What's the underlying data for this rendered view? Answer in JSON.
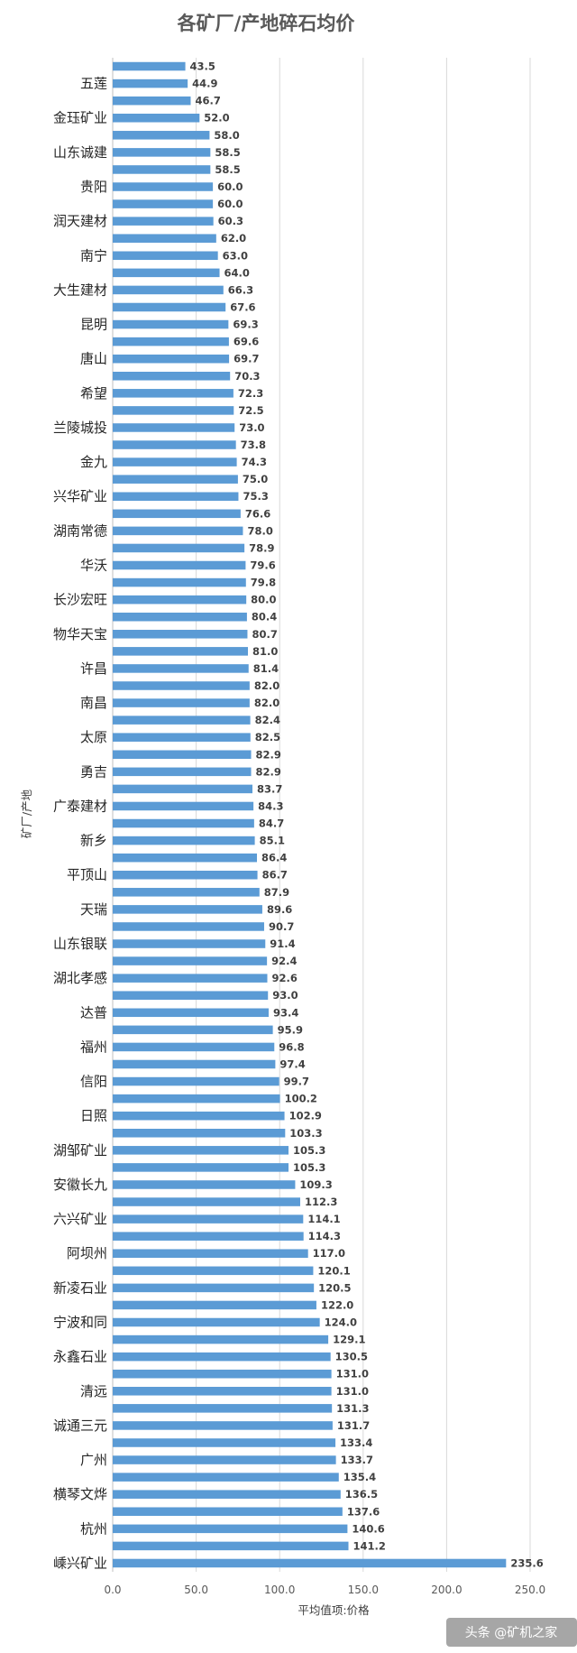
{
  "chart_data": {
    "type": "bar",
    "orientation": "horizontal",
    "title": "各矿厂/产地碎石均价",
    "xlabel": "平均值项:价格",
    "ylabel": "矿厂/产地",
    "xlim": [
      0,
      250
    ],
    "xticks": [
      "0.0",
      "50.0",
      "100.0",
      "150.0",
      "200.0",
      "250.0"
    ],
    "grid": true,
    "bar_color": "#5B9BD5",
    "categories": [
      "",
      "五莲",
      "",
      "金珏矿业",
      "",
      "山东诚建",
      "",
      "贵阳",
      "",
      "润天建材",
      "",
      "南宁",
      "",
      "大生建材",
      "",
      "昆明",
      "",
      "唐山",
      "",
      "希望",
      "",
      "兰陵城投",
      "",
      "金九",
      "",
      "兴华矿业",
      "",
      "湖南常德",
      "",
      "华沃",
      "",
      "长沙宏旺",
      "",
      "物华天宝",
      "",
      "许昌",
      "",
      "南昌",
      "",
      "太原",
      "",
      "勇吉",
      "",
      "广泰建材",
      "",
      "新乡",
      "",
      "平顶山",
      "",
      "天瑞",
      "",
      "山东银联",
      "",
      "湖北孝感",
      "",
      "达普",
      "",
      "福州",
      "",
      "信阳",
      "",
      "日照",
      "",
      "湖邹矿业",
      "",
      "安徽长九",
      "",
      "六兴矿业",
      "",
      "阿坝州",
      "",
      "新凌石业",
      "",
      "宁波和同",
      "",
      "永鑫石业",
      "",
      "清远",
      "",
      "诚通三元",
      "",
      "广州",
      "",
      "横琴文烨",
      "",
      "杭州",
      "",
      "嵊兴矿业"
    ],
    "values": [
      43.5,
      44.9,
      46.7,
      52.0,
      58.0,
      58.5,
      58.5,
      60.0,
      60.0,
      60.3,
      62.0,
      63.0,
      64.0,
      66.3,
      67.6,
      69.3,
      69.6,
      69.7,
      70.3,
      72.3,
      72.5,
      73.0,
      73.8,
      74.3,
      75.0,
      75.3,
      76.6,
      78.0,
      78.9,
      79.6,
      79.8,
      80.0,
      80.4,
      80.7,
      81.0,
      81.4,
      82.0,
      82.0,
      82.4,
      82.5,
      82.9,
      82.9,
      83.7,
      84.3,
      84.7,
      85.1,
      86.4,
      86.7,
      87.9,
      89.6,
      90.7,
      91.4,
      92.4,
      92.6,
      93.0,
      93.4,
      95.9,
      96.8,
      97.4,
      99.7,
      100.2,
      102.9,
      103.3,
      105.3,
      105.3,
      109.3,
      112.3,
      114.1,
      114.3,
      117.0,
      120.1,
      120.5,
      122.0,
      124.0,
      129.1,
      130.5,
      131.0,
      131.0,
      131.3,
      131.7,
      133.4,
      133.7,
      135.4,
      136.5,
      137.6,
      140.6,
      141.2,
      235.6
    ]
  },
  "watermark": "头条 @矿机之家"
}
